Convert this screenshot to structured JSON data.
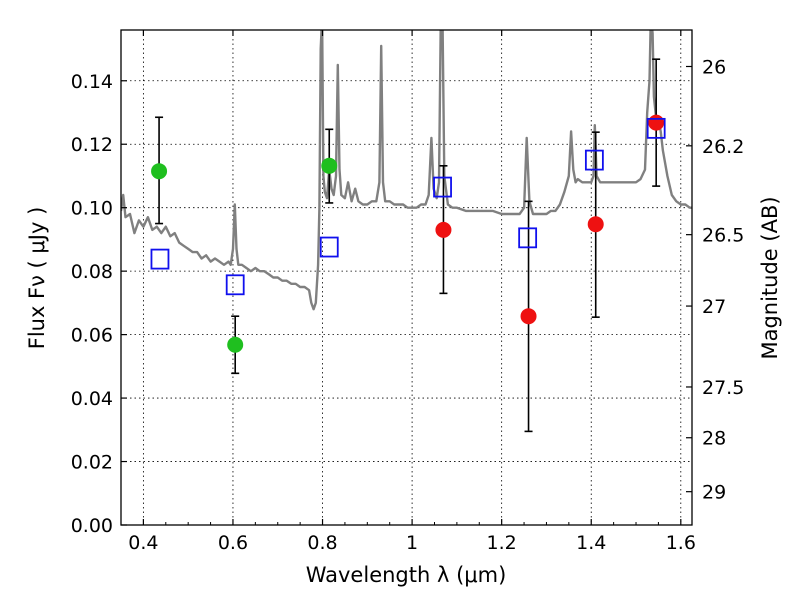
{
  "chart_data": {
    "type": "scatter",
    "title": "",
    "xlabel": "Wavelength  λ (μm)",
    "ylabel": "Flux  Fν  ( μJy )",
    "ylabel_right": "Magnitude (AB)",
    "xlim": [
      0.35,
      1.625
    ],
    "ylim": [
      0.0,
      0.156
    ],
    "grid": true,
    "x_ticks": [
      0.4,
      0.6,
      0.8,
      1.0,
      1.2,
      1.4,
      1.6
    ],
    "x_tick_labels": [
      "0.4",
      "0.6",
      "0.8",
      "1",
      "1.2",
      "1.4",
      "1.6"
    ],
    "y_ticks": [
      0.0,
      0.02,
      0.04,
      0.06,
      0.08,
      0.1,
      0.12,
      0.14
    ],
    "y_tick_labels": [
      "0.00",
      "0.02",
      "0.04",
      "0.06",
      "0.08",
      "0.10",
      "0.12",
      "0.14"
    ],
    "right_ticks": [
      {
        "flux": 0.1445,
        "label": "26"
      },
      {
        "flux": 0.1195,
        "label": "26.2"
      },
      {
        "flux": 0.0915,
        "label": "26.5"
      },
      {
        "flux": 0.069,
        "label": "27"
      },
      {
        "flux": 0.0435,
        "label": "27.5"
      },
      {
        "flux": 0.0275,
        "label": "28"
      },
      {
        "flux": 0.0105,
        "label": "29"
      }
    ],
    "series": [
      {
        "name": "green-detections",
        "color": "#1fbf1f",
        "marker": "circle",
        "points": [
          {
            "x": 0.435,
            "y": 0.1115,
            "err_lo": 0.095,
            "err_hi": 0.1285
          },
          {
            "x": 0.605,
            "y": 0.0568,
            "err_lo": 0.0478,
            "err_hi": 0.0658
          },
          {
            "x": 0.815,
            "y": 0.1132,
            "err_lo": 0.1015,
            "err_hi": 0.1247
          }
        ]
      },
      {
        "name": "red-detections",
        "color": "#ee1111",
        "marker": "circle",
        "points": [
          {
            "x": 1.07,
            "y": 0.093,
            "err_lo": 0.073,
            "err_hi": 0.1132
          },
          {
            "x": 1.26,
            "y": 0.0658,
            "err_lo": 0.0295,
            "err_hi": 0.102
          },
          {
            "x": 1.41,
            "y": 0.0948,
            "err_lo": 0.0655,
            "err_hi": 0.1238
          },
          {
            "x": 1.545,
            "y": 0.1268,
            "err_lo": 0.1068,
            "err_hi": 0.1468
          }
        ]
      },
      {
        "name": "model-photometry",
        "color": "#1010ee",
        "marker": "square-open",
        "points": [
          {
            "x": 0.437,
            "y": 0.0838
          },
          {
            "x": 0.605,
            "y": 0.0757
          },
          {
            "x": 0.815,
            "y": 0.0876
          },
          {
            "x": 1.068,
            "y": 0.1065
          },
          {
            "x": 1.258,
            "y": 0.0905
          },
          {
            "x": 1.407,
            "y": 0.115
          },
          {
            "x": 1.545,
            "y": 0.125
          }
        ]
      },
      {
        "name": "model-spectrum",
        "color": "#808080",
        "marker": "line",
        "points": [
          [
            0.35,
            0.099
          ],
          [
            0.355,
            0.104
          ],
          [
            0.36,
            0.097
          ],
          [
            0.37,
            0.098
          ],
          [
            0.38,
            0.092
          ],
          [
            0.39,
            0.096
          ],
          [
            0.4,
            0.094
          ],
          [
            0.41,
            0.097
          ],
          [
            0.42,
            0.093
          ],
          [
            0.43,
            0.094
          ],
          [
            0.44,
            0.092
          ],
          [
            0.45,
            0.094
          ],
          [
            0.46,
            0.091
          ],
          [
            0.47,
            0.092
          ],
          [
            0.48,
            0.089
          ],
          [
            0.49,
            0.088
          ],
          [
            0.5,
            0.087
          ],
          [
            0.51,
            0.086
          ],
          [
            0.52,
            0.086
          ],
          [
            0.53,
            0.084
          ],
          [
            0.54,
            0.085
          ],
          [
            0.55,
            0.083
          ],
          [
            0.56,
            0.084
          ],
          [
            0.57,
            0.083
          ],
          [
            0.58,
            0.082
          ],
          [
            0.59,
            0.083
          ],
          [
            0.595,
            0.082
          ],
          [
            0.6,
            0.087
          ],
          [
            0.604,
            0.101
          ],
          [
            0.608,
            0.087
          ],
          [
            0.612,
            0.082
          ],
          [
            0.62,
            0.082
          ],
          [
            0.63,
            0.081
          ],
          [
            0.64,
            0.08
          ],
          [
            0.65,
            0.081
          ],
          [
            0.66,
            0.08
          ],
          [
            0.67,
            0.08
          ],
          [
            0.68,
            0.079
          ],
          [
            0.69,
            0.078
          ],
          [
            0.7,
            0.078
          ],
          [
            0.71,
            0.077
          ],
          [
            0.72,
            0.077
          ],
          [
            0.73,
            0.076
          ],
          [
            0.74,
            0.076
          ],
          [
            0.75,
            0.075
          ],
          [
            0.76,
            0.075
          ],
          [
            0.77,
            0.074
          ],
          [
            0.775,
            0.07
          ],
          [
            0.78,
            0.068
          ],
          [
            0.785,
            0.07
          ],
          [
            0.79,
            0.082
          ],
          [
            0.793,
            0.1
          ],
          [
            0.796,
            0.15
          ],
          [
            0.799,
            0.16
          ],
          [
            0.802,
            0.11
          ],
          [
            0.805,
            0.105
          ],
          [
            0.81,
            0.103
          ],
          [
            0.815,
            0.112
          ],
          [
            0.82,
            0.106
          ],
          [
            0.825,
            0.104
          ],
          [
            0.83,
            0.11
          ],
          [
            0.834,
            0.145
          ],
          [
            0.838,
            0.112
          ],
          [
            0.842,
            0.104
          ],
          [
            0.85,
            0.103
          ],
          [
            0.857,
            0.108
          ],
          [
            0.865,
            0.102
          ],
          [
            0.873,
            0.106
          ],
          [
            0.88,
            0.102
          ],
          [
            0.89,
            0.101
          ],
          [
            0.9,
            0.101
          ],
          [
            0.91,
            0.102
          ],
          [
            0.92,
            0.102
          ],
          [
            0.927,
            0.108
          ],
          [
            0.931,
            0.151
          ],
          [
            0.935,
            0.108
          ],
          [
            0.94,
            0.102
          ],
          [
            0.95,
            0.102
          ],
          [
            0.96,
            0.101
          ],
          [
            0.97,
            0.101
          ],
          [
            0.98,
            0.101
          ],
          [
            0.99,
            0.1
          ],
          [
            1.0,
            0.1
          ],
          [
            1.01,
            0.1
          ],
          [
            1.02,
            0.101
          ],
          [
            1.03,
            0.101
          ],
          [
            1.037,
            0.104
          ],
          [
            1.043,
            0.122
          ],
          [
            1.048,
            0.106
          ],
          [
            1.055,
            0.103
          ],
          [
            1.06,
            0.108
          ],
          [
            1.064,
            0.16
          ],
          [
            1.068,
            0.157
          ],
          [
            1.072,
            0.11
          ],
          [
            1.08,
            0.101
          ],
          [
            1.09,
            0.1
          ],
          [
            1.1,
            0.1
          ],
          [
            1.12,
            0.099
          ],
          [
            1.14,
            0.099
          ],
          [
            1.16,
            0.099
          ],
          [
            1.18,
            0.099
          ],
          [
            1.2,
            0.098
          ],
          [
            1.22,
            0.098
          ],
          [
            1.24,
            0.098
          ],
          [
            1.25,
            0.1
          ],
          [
            1.256,
            0.122
          ],
          [
            1.262,
            0.102
          ],
          [
            1.27,
            0.098
          ],
          [
            1.28,
            0.098
          ],
          [
            1.29,
            0.098
          ],
          [
            1.3,
            0.098
          ],
          [
            1.31,
            0.099
          ],
          [
            1.32,
            0.099
          ],
          [
            1.33,
            0.101
          ],
          [
            1.34,
            0.105
          ],
          [
            1.35,
            0.11
          ],
          [
            1.355,
            0.124
          ],
          [
            1.36,
            0.112
          ],
          [
            1.365,
            0.108
          ],
          [
            1.37,
            0.109
          ],
          [
            1.38,
            0.108
          ],
          [
            1.39,
            0.108
          ],
          [
            1.4,
            0.108
          ],
          [
            1.405,
            0.11
          ],
          [
            1.408,
            0.126
          ],
          [
            1.412,
            0.11
          ],
          [
            1.42,
            0.108
          ],
          [
            1.43,
            0.108
          ],
          [
            1.44,
            0.108
          ],
          [
            1.45,
            0.108
          ],
          [
            1.46,
            0.108
          ],
          [
            1.47,
            0.108
          ],
          [
            1.48,
            0.108
          ],
          [
            1.49,
            0.108
          ],
          [
            1.5,
            0.108
          ],
          [
            1.51,
            0.109
          ],
          [
            1.52,
            0.112
          ],
          [
            1.525,
            0.13
          ],
          [
            1.53,
            0.14
          ],
          [
            1.533,
            0.16
          ],
          [
            1.537,
            0.155
          ],
          [
            1.54,
            0.135
          ],
          [
            1.545,
            0.128
          ],
          [
            1.55,
            0.128
          ],
          [
            1.555,
            0.124
          ],
          [
            1.56,
            0.118
          ],
          [
            1.57,
            0.11
          ],
          [
            1.58,
            0.104
          ],
          [
            1.59,
            0.102
          ],
          [
            1.6,
            0.101
          ],
          [
            1.61,
            0.101
          ],
          [
            1.62,
            0.1
          ],
          [
            1.625,
            0.1
          ]
        ]
      }
    ]
  }
}
